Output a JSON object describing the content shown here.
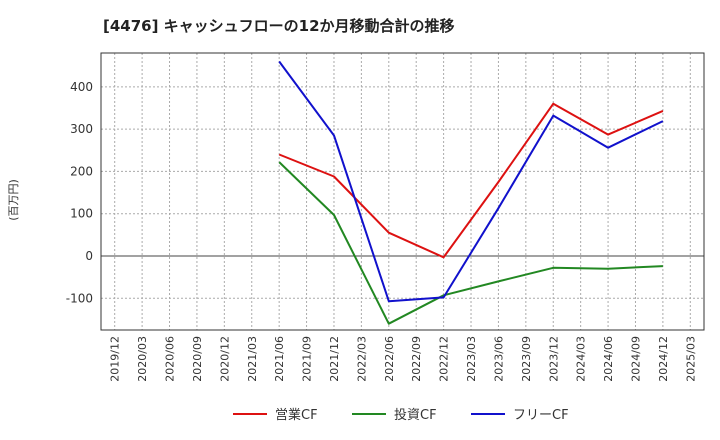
{
  "chart_data": {
    "type": "line",
    "title": "[4476]  キャッシュフローの12か月移動合計の推移",
    "ylabel": "(百万円)",
    "xlabel": "",
    "ylim": [
      -175,
      480
    ],
    "yticks": [
      -100,
      0,
      100,
      200,
      300,
      400
    ],
    "xticks": [
      "2019/12",
      "2020/03",
      "2020/06",
      "2020/09",
      "2020/12",
      "2021/03",
      "2021/06",
      "2021/09",
      "2021/12",
      "2022/03",
      "2022/06",
      "2022/09",
      "2022/12",
      "2023/03",
      "2023/06",
      "2023/09",
      "2023/12",
      "2024/03",
      "2024/06",
      "2024/09",
      "2024/12",
      "2025/03"
    ],
    "grid": true,
    "legend_position": "bottom",
    "series": [
      {
        "name": "営業CF",
        "color": "#dd1111",
        "points": [
          {
            "x": "2021/06",
            "y": 240
          },
          {
            "x": "2021/12",
            "y": 188
          },
          {
            "x": "2022/06",
            "y": 55
          },
          {
            "x": "2022/12",
            "y": -3
          },
          {
            "x": "2023/06",
            "y": 175
          },
          {
            "x": "2023/12",
            "y": 360
          },
          {
            "x": "2024/06",
            "y": 287
          },
          {
            "x": "2024/12",
            "y": 343
          }
        ]
      },
      {
        "name": "投資CF",
        "color": "#228822",
        "points": [
          {
            "x": "2021/06",
            "y": 222
          },
          {
            "x": "2021/12",
            "y": 97
          },
          {
            "x": "2022/06",
            "y": -160
          },
          {
            "x": "2022/12",
            "y": -93
          },
          {
            "x": "2023/06",
            "y": -60
          },
          {
            "x": "2023/12",
            "y": -28
          },
          {
            "x": "2024/06",
            "y": -30
          },
          {
            "x": "2024/12",
            "y": -24
          }
        ]
      },
      {
        "name": "フリーCF",
        "color": "#1111cc",
        "points": [
          {
            "x": "2021/06",
            "y": 460
          },
          {
            "x": "2021/12",
            "y": 285
          },
          {
            "x": "2022/06",
            "y": -107
          },
          {
            "x": "2022/12",
            "y": -98
          },
          {
            "x": "2023/06",
            "y": 113
          },
          {
            "x": "2023/12",
            "y": 332
          },
          {
            "x": "2024/06",
            "y": 256
          },
          {
            "x": "2024/12",
            "y": 319
          }
        ]
      }
    ]
  }
}
